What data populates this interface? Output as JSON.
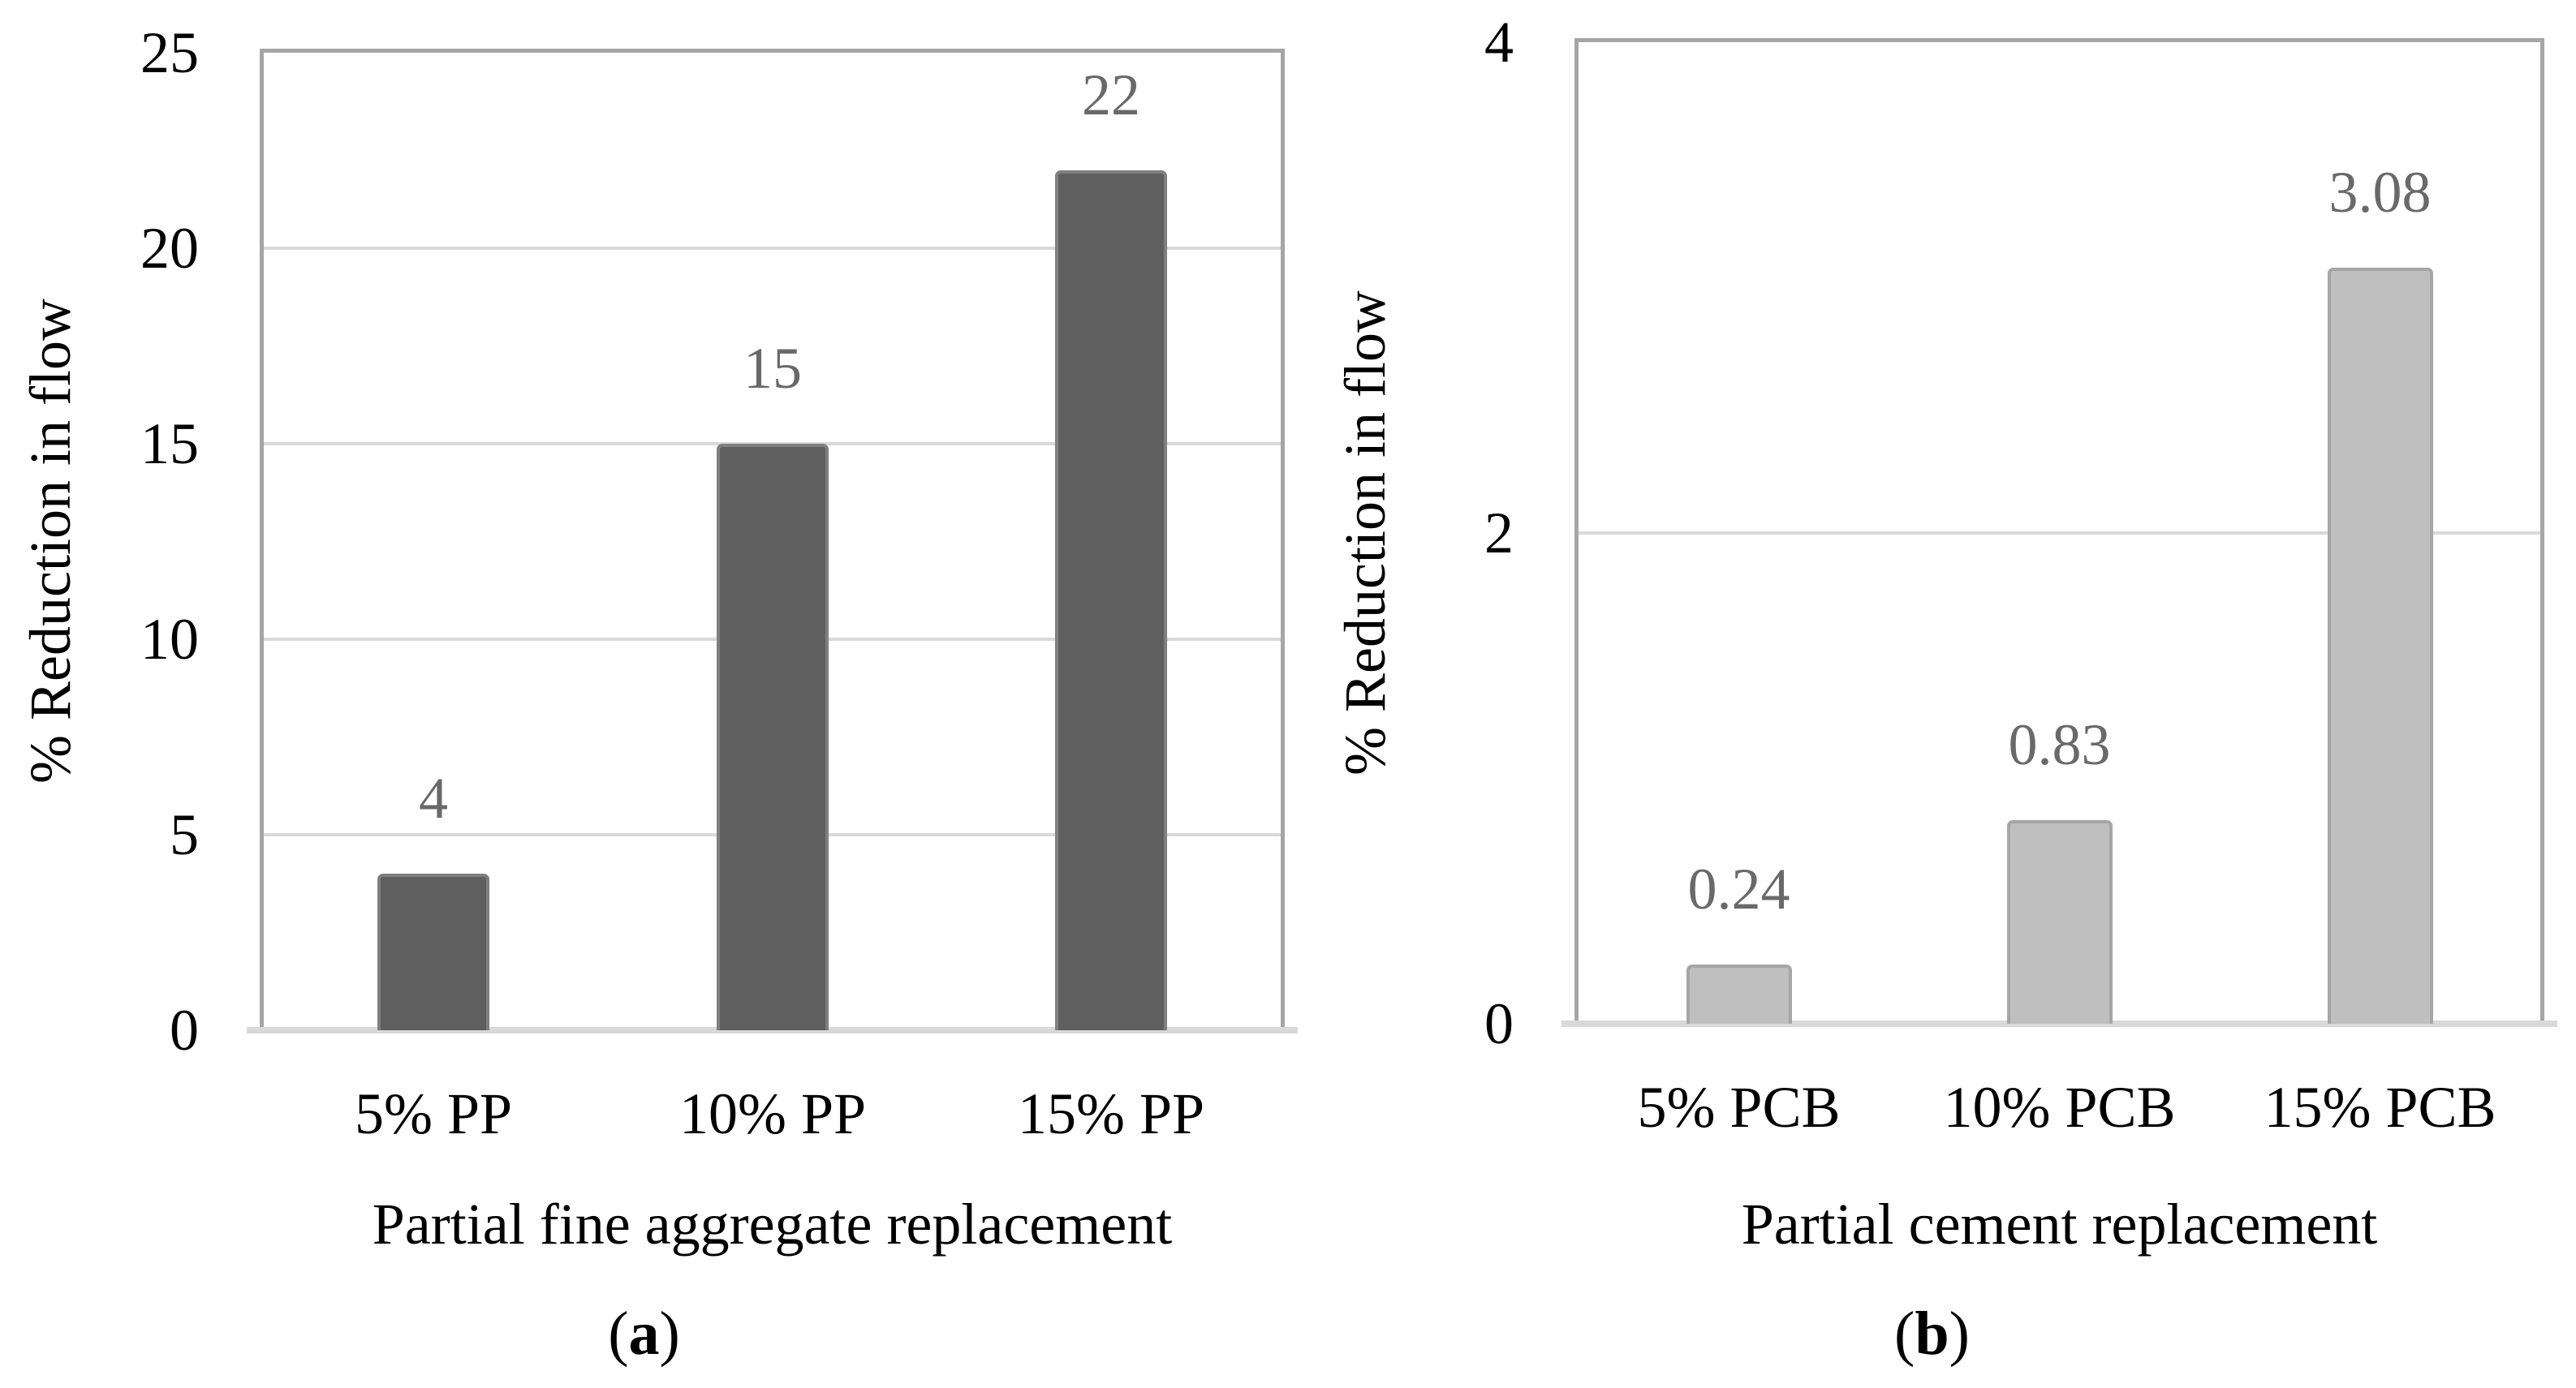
{
  "figure": {
    "background": "#ffffff",
    "panel_count": 2
  },
  "chart_data": [
    {
      "type": "bar",
      "panel": "a",
      "caption": {
        "open": "(",
        "letter": "a",
        "close": ")"
      },
      "title": "",
      "xlabel": "Partial fine aggregate replacement",
      "ylabel": "% Reduction in flow",
      "categories": [
        "5% PP",
        "10% PP",
        "15% PP"
      ],
      "values": [
        4,
        15,
        22
      ],
      "data_labels": [
        "4",
        "15",
        "22"
      ],
      "ylim": [
        0,
        25
      ],
      "yticks": [
        0,
        5,
        10,
        15,
        20,
        25
      ],
      "ytick_labels": [
        "0",
        "5",
        "10",
        "15",
        "20",
        "25"
      ],
      "grid": "horizontal",
      "legend": "none",
      "colors": {
        "bar_fill": "#5f5f5f",
        "bar_border": "#7f7f7f",
        "data_label": "#696969",
        "gridline": "#d9d9d9",
        "axis_line": "#d9d9d9",
        "plot_border": "#a6a6a6",
        "text": "#000000"
      }
    },
    {
      "type": "bar",
      "panel": "b",
      "caption": {
        "open": "(",
        "letter": "b",
        "close": ")"
      },
      "title": "",
      "xlabel": "Partial cement replacement",
      "ylabel": "% Reduction in flow",
      "categories": [
        "5% PCB",
        "10% PCB",
        "15% PCB"
      ],
      "values": [
        0.24,
        0.83,
        3.08
      ],
      "data_labels": [
        "0.24",
        "0.83",
        "3.08"
      ],
      "ylim": [
        0,
        4
      ],
      "yticks": [
        0,
        2,
        4
      ],
      "ytick_labels": [
        "0",
        "2",
        "4"
      ],
      "grid": "horizontal",
      "legend": "none",
      "colors": {
        "bar_fill": "#bfbfbf",
        "bar_border": "#a6a6a6",
        "data_label": "#696969",
        "gridline": "#d9d9d9",
        "axis_line": "#d9d9d9",
        "plot_border": "#a6a6a6",
        "text": "#000000"
      }
    }
  ]
}
